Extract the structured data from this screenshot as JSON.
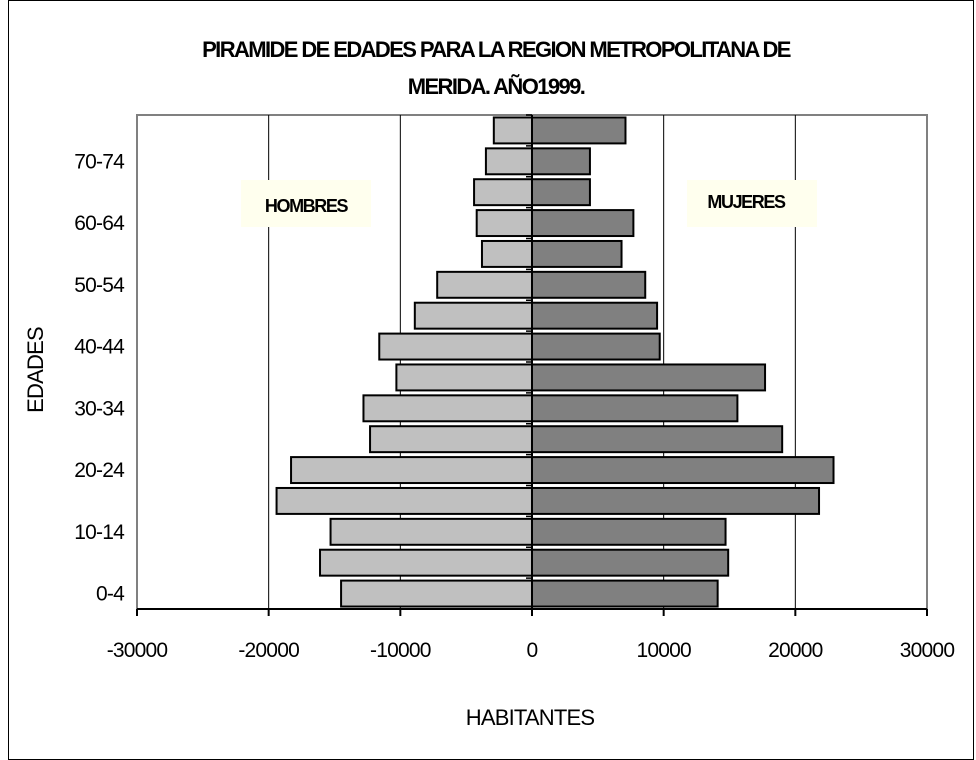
{
  "chart_data": {
    "type": "bar",
    "orientation": "horizontal",
    "title_lines": [
      "PIRAMIDE DE EDADES PARA LA REGION METROPOLITANA  DE",
      "MERIDA. AÑO1999."
    ],
    "xlabel": "HABITANTES",
    "ylabel": "EDADES",
    "xlim": [
      -30000,
      30000
    ],
    "xticks": [
      "-30000",
      "-20000",
      "-10000",
      "0",
      "10000",
      "20000",
      "30000"
    ],
    "xtick_values": [
      -30000,
      -20000,
      -10000,
      0,
      10000,
      20000,
      30000
    ],
    "grid": "vertical",
    "legend_labels": {
      "men": "HOMBRES",
      "women": "MUJERES"
    },
    "ytick_labels": [
      {
        "label": "0-4",
        "index": 0
      },
      {
        "label": "10-14",
        "index": 2
      },
      {
        "label": "20-24",
        "index": 4
      },
      {
        "label": "30-34",
        "index": 6
      },
      {
        "label": "40-44",
        "index": 8
      },
      {
        "label": "50-54",
        "index": 10
      },
      {
        "label": "60-64",
        "index": 12
      },
      {
        "label": "70-74",
        "index": 14
      }
    ],
    "series": [
      {
        "key": "men",
        "color": "#c0c0c0",
        "values": [
          -14500,
          -16100,
          -15300,
          -19400,
          -18300,
          -12300,
          -12800,
          -10300,
          -11600,
          -8900,
          -7200,
          -3800,
          -4200,
          -4400,
          -3500,
          -2900
        ]
      },
      {
        "key": "women",
        "color": "#808080",
        "values": [
          14100,
          14900,
          14700,
          21800,
          22900,
          19000,
          15600,
          17700,
          9700,
          9500,
          8600,
          6800,
          7700,
          4400,
          4400,
          7100
        ]
      }
    ],
    "colors": {
      "men_fill": "#c0c0c0",
      "women_fill": "#808080",
      "bar_stroke": "#000000",
      "grid": "#000000",
      "legend_bg": "#ffffee"
    }
  }
}
